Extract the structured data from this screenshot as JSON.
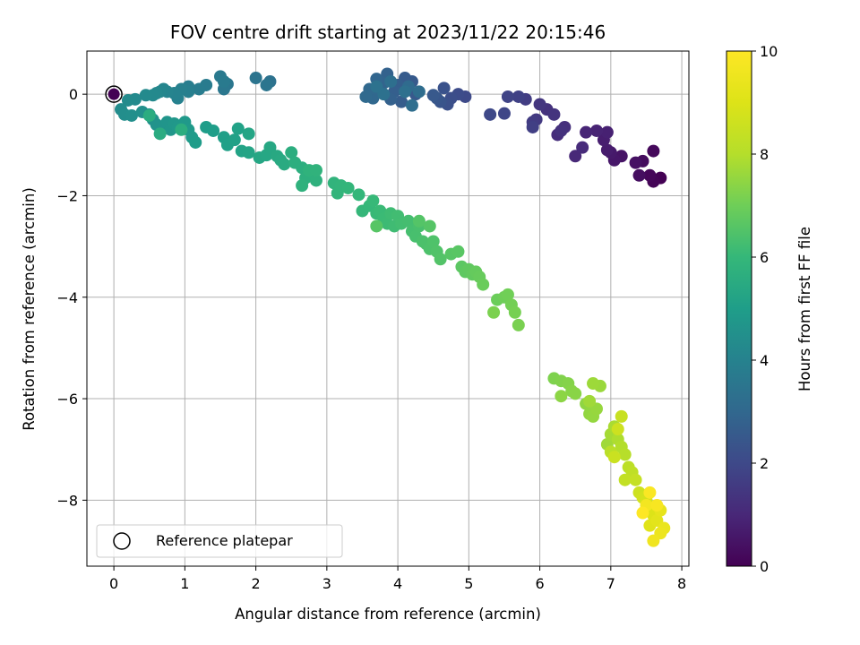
{
  "chart_data": {
    "type": "scatter",
    "title": "FOV centre drift starting at 2023/11/22 20:15:46",
    "xlabel": "Angular distance from reference (arcmin)",
    "ylabel": "Rotation from reference (arcmin)",
    "xlim": [
      -0.38,
      8.1
    ],
    "ylim": [
      -9.3,
      0.85
    ],
    "xticks": [
      0,
      1,
      2,
      3,
      4,
      5,
      6,
      7,
      8
    ],
    "yticks": [
      0,
      -2,
      -4,
      -6,
      -8
    ],
    "grid": true,
    "legend": {
      "position": "lower-left",
      "entries": [
        "Reference platepar"
      ]
    },
    "colorbar": {
      "label": "Hours from first FF file",
      "min": 0,
      "max": 10,
      "ticks": [
        0,
        2,
        4,
        6,
        8,
        10
      ],
      "colormap": "viridis"
    },
    "reference_point": {
      "x": 0,
      "y": 0
    },
    "segments": [
      {
        "hours": [
          0.0,
          1.3
        ],
        "points": [
          [
            7.7,
            -1.65
          ],
          [
            7.6,
            -1.72
          ],
          [
            7.55,
            -1.6
          ],
          [
            7.6,
            -1.12
          ],
          [
            7.45,
            -1.32
          ],
          [
            7.4,
            -1.6
          ],
          [
            7.35,
            -1.35
          ],
          [
            7.15,
            -1.22
          ],
          [
            7.05,
            -1.3
          ],
          [
            7.0,
            -1.15
          ],
          [
            6.95,
            -1.1
          ],
          [
            6.9,
            -0.9
          ],
          [
            6.95,
            -0.75
          ],
          [
            6.8,
            -0.72
          ],
          [
            6.65,
            -0.75
          ],
          [
            6.5,
            -1.22
          ],
          [
            6.6,
            -1.05
          ],
          [
            6.25,
            -0.8
          ],
          [
            6.35,
            -0.65
          ],
          [
            6.3,
            -0.72
          ]
        ]
      },
      {
        "hours": [
          1.3,
          2.5
        ],
        "points": [
          [
            6.1,
            -0.3
          ],
          [
            6.2,
            -0.4
          ],
          [
            6.0,
            -0.2
          ],
          [
            5.95,
            -0.5
          ],
          [
            5.9,
            -0.55
          ],
          [
            5.8,
            -0.1
          ],
          [
            5.9,
            -0.65
          ],
          [
            5.7,
            -0.05
          ],
          [
            5.55,
            -0.05
          ],
          [
            5.5,
            -0.38
          ],
          [
            5.3,
            -0.4
          ],
          [
            4.95,
            -0.05
          ],
          [
            4.85,
            0.0
          ],
          [
            4.75,
            -0.08
          ],
          [
            4.7,
            -0.2
          ],
          [
            4.65,
            0.12
          ],
          [
            4.6,
            -0.15
          ],
          [
            4.55,
            -0.08
          ],
          [
            4.5,
            -0.02
          ]
        ]
      },
      {
        "hours": [
          2.5,
          3.4
        ],
        "points": [
          [
            4.25,
            0.0
          ],
          [
            4.2,
            0.25
          ],
          [
            4.1,
            0.32
          ],
          [
            4.05,
            -0.15
          ],
          [
            4.0,
            0.18
          ],
          [
            3.95,
            0.05
          ],
          [
            3.9,
            -0.1
          ],
          [
            3.85,
            0.4
          ],
          [
            3.8,
            0.22
          ],
          [
            3.75,
            0.05
          ],
          [
            3.7,
            0.3
          ],
          [
            3.65,
            -0.08
          ],
          [
            3.6,
            0.1
          ],
          [
            3.55,
            -0.05
          ],
          [
            4.15,
            0.15
          ],
          [
            4.3,
            0.05
          ],
          [
            4.2,
            -0.22
          ],
          [
            3.9,
            0.25
          ],
          [
            4.1,
            0.05
          ],
          [
            3.8,
            0.0
          ],
          [
            3.7,
            0.15
          ]
        ]
      },
      {
        "hours": [
          3.4,
          4.3
        ],
        "points": [
          [
            2.2,
            0.25
          ],
          [
            2.0,
            0.32
          ],
          [
            2.15,
            0.18
          ],
          [
            1.6,
            0.2
          ],
          [
            1.55,
            0.1
          ],
          [
            1.5,
            0.35
          ],
          [
            1.55,
            0.25
          ],
          [
            1.3,
            0.18
          ],
          [
            1.2,
            0.1
          ],
          [
            1.05,
            0.15
          ],
          [
            1.05,
            0.05
          ],
          [
            0.95,
            0.1
          ],
          [
            0.9,
            -0.08
          ],
          [
            0.85,
            0.02
          ],
          [
            0.75,
            0.05
          ],
          [
            0.7,
            0.1
          ],
          [
            0.65,
            0.05
          ],
          [
            0.6,
            0.02
          ],
          [
            0.55,
            -0.02
          ],
          [
            0.45,
            -0.02
          ]
        ]
      },
      {
        "hours": [
          4.3,
          5.6
        ],
        "points": [
          [
            0.3,
            -0.1
          ],
          [
            0.2,
            -0.12
          ],
          [
            0.1,
            -0.3
          ],
          [
            0.15,
            -0.4
          ],
          [
            0.25,
            -0.42
          ],
          [
            0.4,
            -0.35
          ],
          [
            0.5,
            -0.4
          ],
          [
            0.55,
            -0.5
          ],
          [
            0.6,
            -0.6
          ],
          [
            0.7,
            -0.65
          ],
          [
            0.75,
            -0.55
          ],
          [
            0.8,
            -0.7
          ],
          [
            0.85,
            -0.58
          ],
          [
            0.9,
            -0.65
          ],
          [
            1.0,
            -0.55
          ],
          [
            1.05,
            -0.7
          ],
          [
            1.1,
            -0.85
          ],
          [
            1.15,
            -0.95
          ],
          [
            1.3,
            -0.65
          ],
          [
            1.4,
            -0.72
          ],
          [
            1.55,
            -0.85
          ],
          [
            1.6,
            -1.0
          ],
          [
            1.7,
            -0.9
          ],
          [
            1.75,
            -0.68
          ],
          [
            1.8,
            -1.12
          ],
          [
            1.9,
            -1.15
          ],
          [
            1.9,
            -0.78
          ],
          [
            2.05,
            -1.25
          ],
          [
            2.15,
            -1.2
          ],
          [
            2.2,
            -1.05
          ],
          [
            2.3,
            -1.22
          ],
          [
            2.35,
            -1.3
          ],
          [
            2.4,
            -1.38
          ],
          [
            0.65,
            -0.78
          ],
          [
            0.5,
            -0.42
          ],
          [
            0.95,
            -0.7
          ]
        ]
      },
      {
        "hours": [
          5.6,
          6.6
        ],
        "points": [
          [
            2.5,
            -1.15
          ],
          [
            2.55,
            -1.35
          ],
          [
            2.65,
            -1.45
          ],
          [
            2.7,
            -1.65
          ],
          [
            2.8,
            -1.55
          ],
          [
            2.85,
            -1.7
          ],
          [
            2.65,
            -1.8
          ],
          [
            2.75,
            -1.5
          ],
          [
            2.85,
            -1.5
          ],
          [
            3.1,
            -1.75
          ],
          [
            3.15,
            -1.95
          ],
          [
            3.2,
            -1.8
          ],
          [
            3.3,
            -1.85
          ],
          [
            3.45,
            -1.98
          ],
          [
            3.5,
            -2.3
          ],
          [
            3.6,
            -2.2
          ],
          [
            3.65,
            -2.1
          ],
          [
            3.7,
            -2.35
          ],
          [
            3.75,
            -2.3
          ],
          [
            3.8,
            -2.45
          ],
          [
            3.85,
            -2.55
          ],
          [
            3.9,
            -2.35
          ],
          [
            3.95,
            -2.6
          ],
          [
            4.0,
            -2.4
          ],
          [
            4.05,
            -2.55
          ],
          [
            4.15,
            -2.5
          ],
          [
            4.2,
            -2.7
          ],
          [
            4.25,
            -2.8
          ],
          [
            4.3,
            -2.6
          ],
          [
            4.35,
            -2.9
          ],
          [
            4.4,
            -2.95
          ],
          [
            4.45,
            -3.05
          ],
          [
            4.5,
            -2.9
          ],
          [
            4.55,
            -3.1
          ],
          [
            4.6,
            -3.25
          ],
          [
            4.3,
            -2.5
          ],
          [
            4.45,
            -2.6
          ],
          [
            3.7,
            -2.6
          ]
        ]
      },
      {
        "hours": [
          6.6,
          7.7
        ],
        "points": [
          [
            4.75,
            -3.15
          ],
          [
            4.85,
            -3.1
          ],
          [
            4.9,
            -3.4
          ],
          [
            4.95,
            -3.5
          ],
          [
            5.0,
            -3.45
          ],
          [
            5.05,
            -3.55
          ],
          [
            5.1,
            -3.5
          ],
          [
            5.15,
            -3.6
          ],
          [
            5.2,
            -3.75
          ],
          [
            5.4,
            -4.05
          ],
          [
            5.5,
            -4.0
          ],
          [
            5.55,
            -3.95
          ],
          [
            5.6,
            -4.15
          ],
          [
            5.65,
            -4.3
          ],
          [
            5.7,
            -4.55
          ],
          [
            5.35,
            -4.3
          ],
          [
            6.2,
            -5.6
          ],
          [
            6.3,
            -5.65
          ],
          [
            6.4,
            -5.7
          ],
          [
            6.45,
            -5.85
          ],
          [
            6.5,
            -5.9
          ],
          [
            6.3,
            -5.95
          ],
          [
            6.65,
            -6.1
          ],
          [
            6.7,
            -6.3
          ],
          [
            6.75,
            -6.35
          ],
          [
            6.8,
            -6.2
          ],
          [
            6.85,
            -5.75
          ],
          [
            6.75,
            -5.7
          ],
          [
            6.7,
            -6.05
          ]
        ]
      },
      {
        "hours": [
          7.7,
          8.6
        ],
        "points": [
          [
            6.95,
            -6.9
          ],
          [
            7.0,
            -6.7
          ],
          [
            7.05,
            -6.55
          ],
          [
            7.1,
            -6.8
          ],
          [
            7.15,
            -6.95
          ],
          [
            7.2,
            -7.1
          ],
          [
            7.0,
            -7.05
          ],
          [
            7.25,
            -7.35
          ],
          [
            7.3,
            -7.45
          ],
          [
            7.2,
            -7.6
          ],
          [
            7.35,
            -7.6
          ],
          [
            7.15,
            -6.35
          ],
          [
            7.05,
            -7.15
          ],
          [
            7.1,
            -6.6
          ]
        ]
      },
      {
        "hours": [
          8.6,
          10.0
        ],
        "points": [
          [
            7.4,
            -7.85
          ],
          [
            7.45,
            -7.95
          ],
          [
            7.5,
            -8.0
          ],
          [
            7.55,
            -8.15
          ],
          [
            7.6,
            -8.3
          ],
          [
            7.55,
            -8.5
          ],
          [
            7.65,
            -8.4
          ],
          [
            7.7,
            -8.2
          ],
          [
            7.75,
            -8.55
          ],
          [
            7.7,
            -8.65
          ],
          [
            7.6,
            -8.8
          ],
          [
            7.5,
            -8.1
          ],
          [
            7.65,
            -8.1
          ],
          [
            7.55,
            -7.85
          ],
          [
            7.45,
            -8.25
          ]
        ]
      }
    ]
  }
}
